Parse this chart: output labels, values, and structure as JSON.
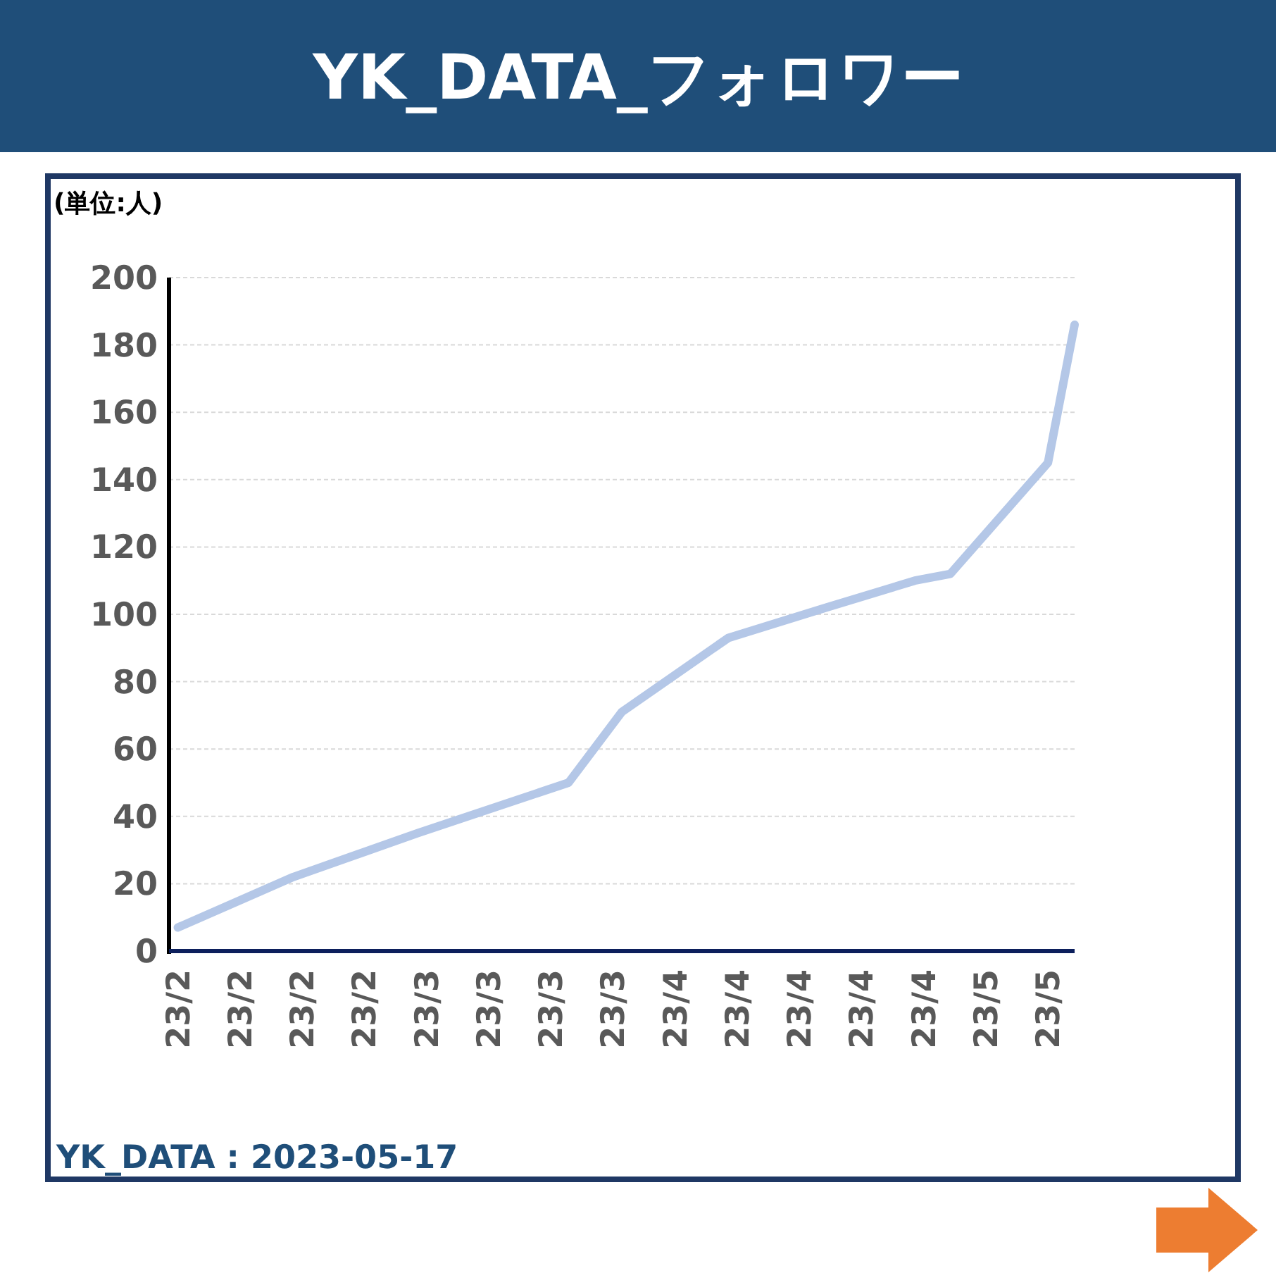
{
  "chart_data": {
    "type": "line",
    "title": "YK_DATA_フォロワー",
    "ylabel": "(単位:人)",
    "annotations": [
      "YK_DATA : 2023-05-17"
    ],
    "x": [
      "2023-02-05",
      "2023-02-18",
      "2023-03-04",
      "2023-03-21",
      "2023-03-27",
      "2023-04-08",
      "2023-04-19",
      "2023-04-29",
      "2023-05-03",
      "2023-05-14",
      "2023-05-17"
    ],
    "series": [
      {
        "color": "#b4c7e7",
        "values": [
          7,
          22,
          35,
          50,
          71,
          93,
          102,
          110,
          112,
          145,
          186
        ]
      }
    ],
    "xlim": [
      "2023-02-04",
      "2023-05-17"
    ],
    "xticks": [
      {
        "value": "2023-02-05",
        "label": "23/2"
      },
      {
        "value": "2023-02-12",
        "label": "23/2"
      },
      {
        "value": "2023-02-19",
        "label": "23/2"
      },
      {
        "value": "2023-02-26",
        "label": "23/2"
      },
      {
        "value": "2023-03-05",
        "label": "23/3"
      },
      {
        "value": "2023-03-12",
        "label": "23/3"
      },
      {
        "value": "2023-03-19",
        "label": "23/3"
      },
      {
        "value": "2023-03-26",
        "label": "23/3"
      },
      {
        "value": "2023-04-02",
        "label": "23/4"
      },
      {
        "value": "2023-04-09",
        "label": "23/4"
      },
      {
        "value": "2023-04-16",
        "label": "23/4"
      },
      {
        "value": "2023-04-23",
        "label": "23/4"
      },
      {
        "value": "2023-04-30",
        "label": "23/4"
      },
      {
        "value": "2023-05-07",
        "label": "23/5"
      },
      {
        "value": "2023-05-14",
        "label": "23/5"
      }
    ],
    "ylim": [
      0,
      200
    ],
    "yticks": [
      0,
      20,
      40,
      60,
      80,
      100,
      120,
      140,
      160,
      180,
      200
    ],
    "grid": "y",
    "line_style": "solid"
  }
}
